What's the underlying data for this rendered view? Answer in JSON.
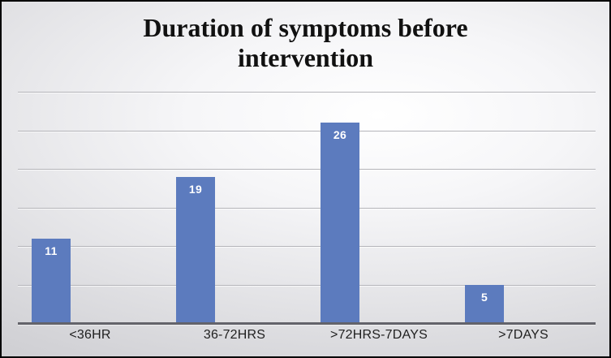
{
  "chart_data": {
    "type": "bar",
    "title": "Duration of symptoms before intervention",
    "categories": [
      "<36HR",
      "36-72HRS",
      ">72HRS-7DAYS",
      ">7DAYS"
    ],
    "values": [
      11,
      19,
      26,
      5
    ],
    "data_labels": [
      "11",
      "19",
      "26",
      "5"
    ],
    "xlabel": "",
    "ylabel": "",
    "ylim": [
      0,
      30
    ],
    "gridline_step": 5,
    "grid": true,
    "legend_position": "none",
    "colors": {
      "bar": "#5c7bbe",
      "data_label": "#ffffff",
      "gridline": "#b4b4b9",
      "axis_line": "#63636a",
      "title_text": "#111111",
      "category_label": "#1f1f1f",
      "background_center": "#ffffff",
      "background_edge": "#c9c9cd",
      "frame_border": "#000000"
    }
  }
}
